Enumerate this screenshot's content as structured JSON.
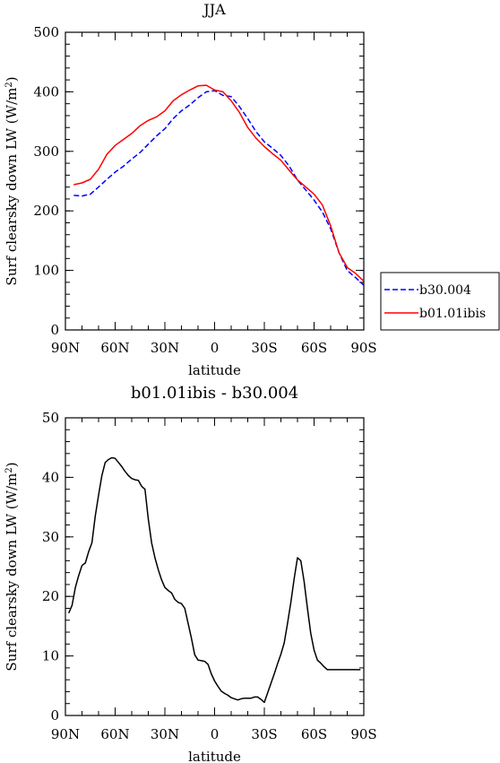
{
  "chart_data": [
    {
      "type": "line",
      "title": "JJA",
      "xlabel": "latitude",
      "ylabel": "Surf clearsky down LW (W/m~S~2~N~)",
      "x_tick_labels": [
        "90N",
        "60N",
        "30N",
        "0",
        "30S",
        "60S",
        "90S"
      ],
      "x_tick_values": [
        90,
        60,
        30,
        0,
        -30,
        -60,
        -90
      ],
      "xlim": [
        90,
        -90
      ],
      "ylim": [
        0,
        500
      ],
      "y_ticks": [
        0,
        100,
        200,
        300,
        400,
        500
      ],
      "grid": false,
      "legend_placement": "right",
      "x": [
        85,
        80,
        75,
        70,
        65,
        60,
        55,
        50,
        45,
        40,
        35,
        30,
        25,
        20,
        15,
        10,
        5,
        0,
        -5,
        -10,
        -15,
        -20,
        -25,
        -30,
        -35,
        -40,
        -45,
        -50,
        -55,
        -60,
        -65,
        -70,
        -75,
        -80,
        -85,
        -90
      ],
      "series": [
        {
          "name": "b30.004",
          "color": "#0000ff",
          "dash": "dashed",
          "values": [
            226,
            225,
            228,
            240,
            253,
            265,
            275,
            287,
            298,
            312,
            326,
            338,
            355,
            368,
            378,
            390,
            400,
            402,
            394,
            392,
            375,
            355,
            333,
            316,
            305,
            293,
            275,
            252,
            235,
            218,
            198,
            170,
            130,
            100,
            88,
            75
          ]
        },
        {
          "name": "b01.01ibis",
          "color": "#ff0000",
          "dash": "solid",
          "values": [
            244,
            247,
            253,
            270,
            295,
            310,
            320,
            330,
            343,
            352,
            358,
            368,
            385,
            395,
            403,
            410,
            411,
            403,
            400,
            385,
            365,
            340,
            322,
            308,
            296,
            285,
            268,
            252,
            240,
            228,
            210,
            175,
            130,
            105,
            95,
            82
          ]
        }
      ]
    },
    {
      "type": "line",
      "title": "b01.01ibis - b30.004",
      "xlabel": "latitude",
      "ylabel": "Surf clearsky down LW (W/m~S~2~N~)",
      "x_tick_labels": [
        "90N",
        "60N",
        "30N",
        "0",
        "30S",
        "60S",
        "90S"
      ],
      "x_tick_values": [
        90,
        60,
        30,
        0,
        -30,
        -60,
        -90
      ],
      "xlim": [
        90,
        -90
      ],
      "ylim": [
        0,
        50
      ],
      "y_ticks": [
        0,
        10,
        20,
        30,
        40,
        50
      ],
      "grid": false,
      "x": [
        88,
        86,
        84,
        82,
        80,
        78,
        76,
        74,
        72,
        70,
        68,
        66,
        64,
        62,
        60,
        58,
        56,
        54,
        52,
        50,
        48,
        46,
        44,
        42,
        40,
        38,
        36,
        34,
        32,
        30,
        28,
        26,
        24,
        22,
        20,
        18,
        16,
        14,
        12,
        10,
        8,
        6,
        4,
        2,
        0,
        -2,
        -4,
        -6,
        -8,
        -10,
        -12,
        -14,
        -16,
        -18,
        -20,
        -22,
        -24,
        -26,
        -28,
        -30,
        -32,
        -34,
        -36,
        -38,
        -40,
        -42,
        -44,
        -46,
        -48,
        -50,
        -52,
        -54,
        -56,
        -58,
        -60,
        -62,
        -64,
        -66,
        -68,
        -70,
        -72,
        -74,
        -76,
        -78,
        -80,
        -82,
        -84,
        -86,
        -88
      ],
      "series": [
        {
          "color": "#000000",
          "values": [
            17.2,
            18.5,
            21.5,
            23.5,
            25.2,
            25.6,
            27.5,
            29.0,
            33.5,
            37.0,
            40.3,
            42.5,
            43.0,
            43.3,
            43.2,
            42.5,
            41.8,
            41.0,
            40.3,
            39.8,
            39.6,
            39.5,
            38.5,
            38.0,
            33.0,
            29.0,
            26.5,
            24.5,
            22.8,
            21.5,
            21.0,
            20.6,
            19.5,
            19.0,
            18.8,
            18.0,
            15.5,
            13.0,
            10.2,
            9.3,
            9.2,
            9.1,
            8.6,
            7.0,
            5.8,
            4.9,
            4.1,
            3.7,
            3.4,
            3.0,
            2.8,
            2.6,
            2.8,
            2.9,
            2.9,
            2.9,
            3.1,
            3.1,
            2.7,
            2.2,
            3.8,
            5.4,
            7.0,
            8.7,
            10.3,
            12.2,
            15.5,
            19.0,
            23.0,
            26.5,
            26.0,
            22.5,
            18.0,
            13.8,
            11.0,
            9.3,
            8.8,
            8.2,
            7.7,
            7.7,
            7.7,
            7.7,
            7.7,
            7.7,
            7.7,
            7.7,
            7.7,
            7.7,
            7.7
          ]
        }
      ]
    }
  ]
}
